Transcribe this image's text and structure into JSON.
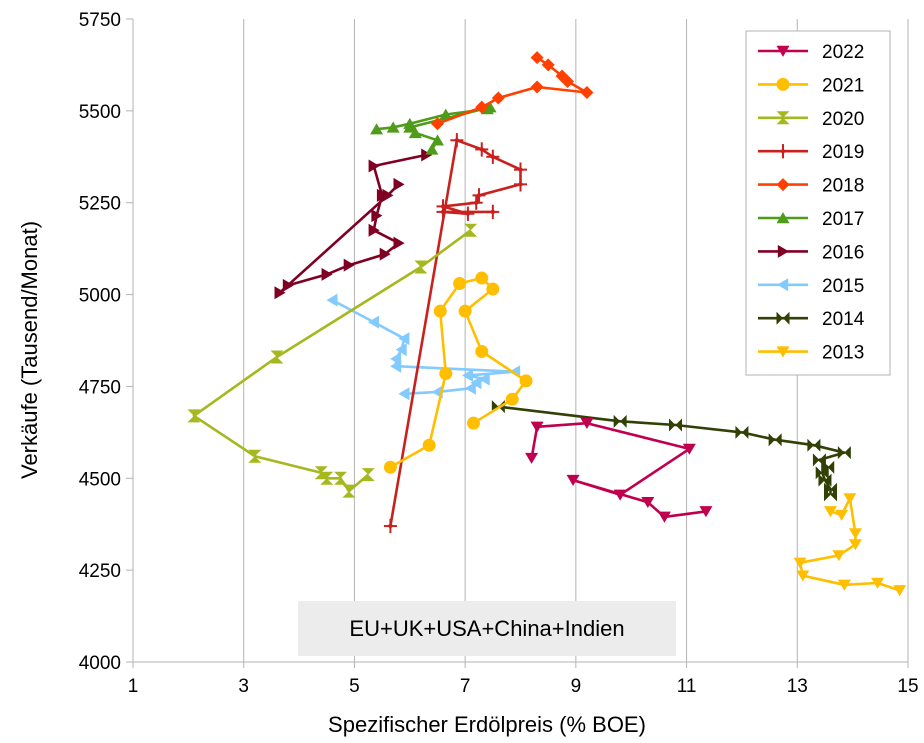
{
  "chart_data": {
    "type": "line",
    "title": "",
    "xlabel": "Spezifischer Erdölpreis (% BOE)",
    "ylabel": "Verkäufe (Tausend/Monat)",
    "xlim": [
      1,
      15
    ],
    "ylim": [
      4000,
      5750
    ],
    "xticks": [
      "1",
      "3",
      "5",
      "7",
      "9",
      "11",
      "13",
      "15"
    ],
    "yticks": [
      "4000",
      "4250",
      "4500",
      "4750",
      "5000",
      "5250",
      "5500",
      "5750"
    ],
    "grid": "vertical",
    "legend_position": "top-right",
    "annotation": "EU+UK+USA+China+Indien",
    "series": [
      {
        "name": "2022",
        "color": "#c0004f",
        "marker": "triangle-down",
        "points": [
          [
            8.2,
            4555
          ],
          [
            8.3,
            4640
          ],
          [
            9.2,
            4650
          ],
          [
            11.05,
            4580
          ],
          [
            9.8,
            4455
          ],
          [
            8.95,
            4495
          ],
          [
            10.3,
            4435
          ],
          [
            10.6,
            4395
          ],
          [
            11.35,
            4410
          ]
        ]
      },
      {
        "name": "2021",
        "color": "#ffbf00",
        "marker": "circle",
        "points": [
          [
            5.65,
            4530
          ],
          [
            6.35,
            4590
          ],
          [
            6.65,
            4785
          ],
          [
            6.55,
            4955
          ],
          [
            6.9,
            5030
          ],
          [
            7.3,
            5045
          ],
          [
            7.5,
            5015
          ],
          [
            7.0,
            4955
          ],
          [
            7.3,
            4845
          ],
          [
            8.1,
            4765
          ],
          [
            7.85,
            4715
          ],
          [
            7.15,
            4650
          ]
        ]
      },
      {
        "name": "2020",
        "color": "#a5b81e",
        "marker": "hourglass",
        "points": [
          [
            7.1,
            5175
          ],
          [
            6.2,
            5075
          ],
          [
            3.6,
            4830
          ],
          [
            2.1,
            4670
          ],
          [
            3.2,
            4560
          ],
          [
            4.4,
            4515
          ],
          [
            4.5,
            4500
          ],
          [
            4.75,
            4500
          ],
          [
            4.9,
            4465
          ],
          [
            5.25,
            4510
          ]
        ]
      },
      {
        "name": "2019",
        "color": "#c9211e",
        "marker": "star",
        "points": [
          [
            5.65,
            4370
          ],
          [
            6.85,
            5420
          ],
          [
            7.3,
            5395
          ],
          [
            7.5,
            5375
          ],
          [
            8.0,
            5340
          ],
          [
            8.0,
            5300
          ],
          [
            7.25,
            5270
          ],
          [
            7.2,
            5250
          ],
          [
            6.6,
            5240
          ],
          [
            7.05,
            5220
          ],
          [
            6.6,
            5225
          ],
          [
            7.5,
            5225
          ]
        ]
      },
      {
        "name": "2018",
        "color": "#ff4000",
        "marker": "diamond",
        "points": [
          [
            6.5,
            5465
          ],
          [
            7.3,
            5510
          ],
          [
            7.6,
            5535
          ],
          [
            8.3,
            5565
          ],
          [
            9.2,
            5550
          ],
          [
            8.85,
            5580
          ],
          [
            8.75,
            5595
          ],
          [
            8.5,
            5625
          ],
          [
            8.3,
            5645
          ]
        ]
      },
      {
        "name": "2017",
        "color": "#4f9c1a",
        "marker": "triangle-up",
        "points": [
          [
            5.4,
            5450
          ],
          [
            5.7,
            5455
          ],
          [
            6.0,
            5465
          ],
          [
            6.65,
            5490
          ],
          [
            7.4,
            5505
          ],
          [
            7.45,
            5510
          ],
          [
            6.0,
            5455
          ],
          [
            6.1,
            5440
          ],
          [
            6.5,
            5420
          ],
          [
            6.4,
            5395
          ]
        ]
      },
      {
        "name": "2016",
        "color": "#800024",
        "marker": "triangle-right",
        "points": [
          [
            6.3,
            5380
          ],
          [
            5.35,
            5350
          ],
          [
            5.5,
            5270
          ],
          [
            5.4,
            5215
          ],
          [
            5.35,
            5175
          ],
          [
            5.8,
            5140
          ],
          [
            5.55,
            5110
          ],
          [
            4.9,
            5080
          ],
          [
            4.5,
            5055
          ],
          [
            3.8,
            5025
          ],
          [
            3.65,
            5005
          ],
          [
            5.6,
            5270
          ],
          [
            5.8,
            5300
          ]
        ]
      },
      {
        "name": "2015",
        "color": "#83caff",
        "marker": "triangle-left",
        "points": [
          [
            4.6,
            4985
          ],
          [
            5.35,
            4925
          ],
          [
            5.9,
            4880
          ],
          [
            5.85,
            4850
          ],
          [
            5.75,
            4825
          ],
          [
            5.75,
            4805
          ],
          [
            7.9,
            4790
          ],
          [
            7.05,
            4780
          ],
          [
            7.35,
            4770
          ],
          [
            7.2,
            4760
          ],
          [
            7.1,
            4745
          ],
          [
            6.5,
            4735
          ],
          [
            5.9,
            4730
          ]
        ]
      },
      {
        "name": "2014",
        "color": "#314004",
        "marker": "bowtie",
        "points": [
          [
            7.6,
            4695
          ],
          [
            9.8,
            4655
          ],
          [
            10.8,
            4645
          ],
          [
            12.0,
            4625
          ],
          [
            12.6,
            4605
          ],
          [
            13.3,
            4590
          ],
          [
            13.85,
            4570
          ],
          [
            13.4,
            4550
          ],
          [
            13.55,
            4530
          ],
          [
            13.45,
            4515
          ],
          [
            13.5,
            4495
          ],
          [
            13.6,
            4470
          ],
          [
            13.6,
            4455
          ]
        ]
      },
      {
        "name": "2013",
        "color": "#ffbf00",
        "marker": "triangle-down",
        "points": [
          [
            13.6,
            4410
          ],
          [
            13.8,
            4400
          ],
          [
            13.95,
            4445
          ],
          [
            14.05,
            4350
          ],
          [
            14.05,
            4320
          ],
          [
            13.75,
            4290
          ],
          [
            13.05,
            4270
          ],
          [
            13.1,
            4235
          ],
          [
            13.85,
            4210
          ],
          [
            14.45,
            4215
          ],
          [
            14.85,
            4195
          ]
        ]
      }
    ]
  }
}
